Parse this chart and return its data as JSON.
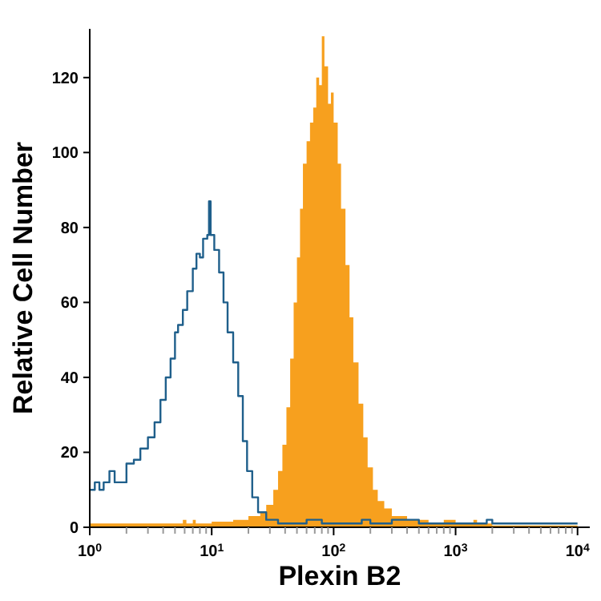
{
  "chart_data": {
    "type": "area",
    "xlabel": "Plexin B2",
    "ylabel": "Relative Cell Number",
    "log": "x",
    "grid": false,
    "xlim": [
      1,
      12600
    ],
    "ylim": [
      0,
      133
    ],
    "xticks": [
      {
        "value": 1,
        "label": "10$^{0}$"
      },
      {
        "value": 2,
        "label": null
      },
      {
        "value": 3,
        "label": null
      },
      {
        "value": 4,
        "label": null
      },
      {
        "value": 5,
        "label": null
      },
      {
        "value": 6,
        "label": null
      },
      {
        "value": 7,
        "label": null
      },
      {
        "value": 8,
        "label": null
      },
      {
        "value": 9,
        "label": null
      },
      {
        "value": 10,
        "label": "10$^{1}$"
      },
      {
        "value": 20,
        "label": null
      },
      {
        "value": 30,
        "label": null
      },
      {
        "value": 40,
        "label": null
      },
      {
        "value": 50,
        "label": null
      },
      {
        "value": 60,
        "label": null
      },
      {
        "value": 70,
        "label": null
      },
      {
        "value": 80,
        "label": null
      },
      {
        "value": 90,
        "label": null
      },
      {
        "value": 100,
        "label": "10$^{2}$"
      },
      {
        "value": 200,
        "label": null
      },
      {
        "value": 300,
        "label": null
      },
      {
        "value": 400,
        "label": null
      },
      {
        "value": 500,
        "label": null
      },
      {
        "value": 600,
        "label": null
      },
      {
        "value": 700,
        "label": null
      },
      {
        "value": 800,
        "label": null
      },
      {
        "value": 900,
        "label": null
      },
      {
        "value": 1000,
        "label": "10$^{3}$"
      },
      {
        "value": 2000,
        "label": null
      },
      {
        "value": 3000,
        "label": null
      },
      {
        "value": 4000,
        "label": null
      },
      {
        "value": 5000,
        "label": null
      },
      {
        "value": 6000,
        "label": null
      },
      {
        "value": 7000,
        "label": null
      },
      {
        "value": 8000,
        "label": null
      },
      {
        "value": 9000,
        "label": null
      },
      {
        "value": 10000,
        "label": "10$^{4}$"
      }
    ],
    "yticks": [
      0,
      20,
      40,
      60,
      80,
      100,
      120
    ],
    "series": [
      {
        "color": "#f7a01e",
        "x": [
          1,
          5.8,
          6.2,
          7,
          7.4,
          10,
          15,
          20,
          25,
          28,
          32,
          35,
          38,
          41,
          44,
          47,
          50,
          53,
          56,
          60,
          64,
          68,
          72,
          76,
          80,
          84,
          90,
          95,
          100,
          108,
          115,
          125,
          135,
          145,
          160,
          175,
          190,
          210,
          230,
          260,
          300,
          400,
          600,
          800,
          1000,
          1400,
          1500,
          2000,
          10000
        ],
        "values": [
          1,
          2,
          1,
          2,
          1,
          1.5,
          2,
          3,
          4,
          6,
          10,
          15,
          22,
          32,
          45,
          60,
          72,
          85,
          97,
          103,
          108,
          112,
          120,
          118,
          131,
          123,
          113,
          116,
          108,
          97,
          85,
          70,
          56,
          44,
          33,
          24,
          16,
          10,
          7,
          5,
          3,
          2,
          1,
          2,
          1,
          2,
          1,
          0.5,
          0.5
        ]
      },
      {
        "type": "step",
        "color": "#1f5f8b",
        "x": [
          1,
          1.1,
          1.2,
          1.3,
          1.45,
          1.6,
          1.8,
          2,
          2.3,
          2.6,
          3,
          3.4,
          3.8,
          4.2,
          4.6,
          5,
          5.3,
          5.8,
          6.3,
          7,
          7.5,
          8,
          8.5,
          9.2,
          9.5,
          9.8,
          10.5,
          11.5,
          12.5,
          13.5,
          15,
          16.5,
          18,
          19.5,
          21.5,
          24,
          28,
          35,
          45,
          60,
          80,
          100,
          170,
          200,
          300,
          380,
          500,
          1000,
          1800,
          2000,
          10000
        ],
        "values": [
          10,
          12,
          10,
          12,
          15,
          12,
          12,
          17,
          18,
          21,
          24,
          28,
          34,
          40,
          45,
          52,
          54,
          58,
          63,
          69,
          73,
          72,
          77,
          78,
          87,
          78,
          74,
          68,
          60,
          52,
          44,
          35,
          23,
          15,
          8,
          4,
          2,
          1,
          1,
          2,
          1,
          1,
          2,
          1,
          2,
          2,
          1,
          1,
          2,
          1,
          1
        ]
      }
    ]
  }
}
